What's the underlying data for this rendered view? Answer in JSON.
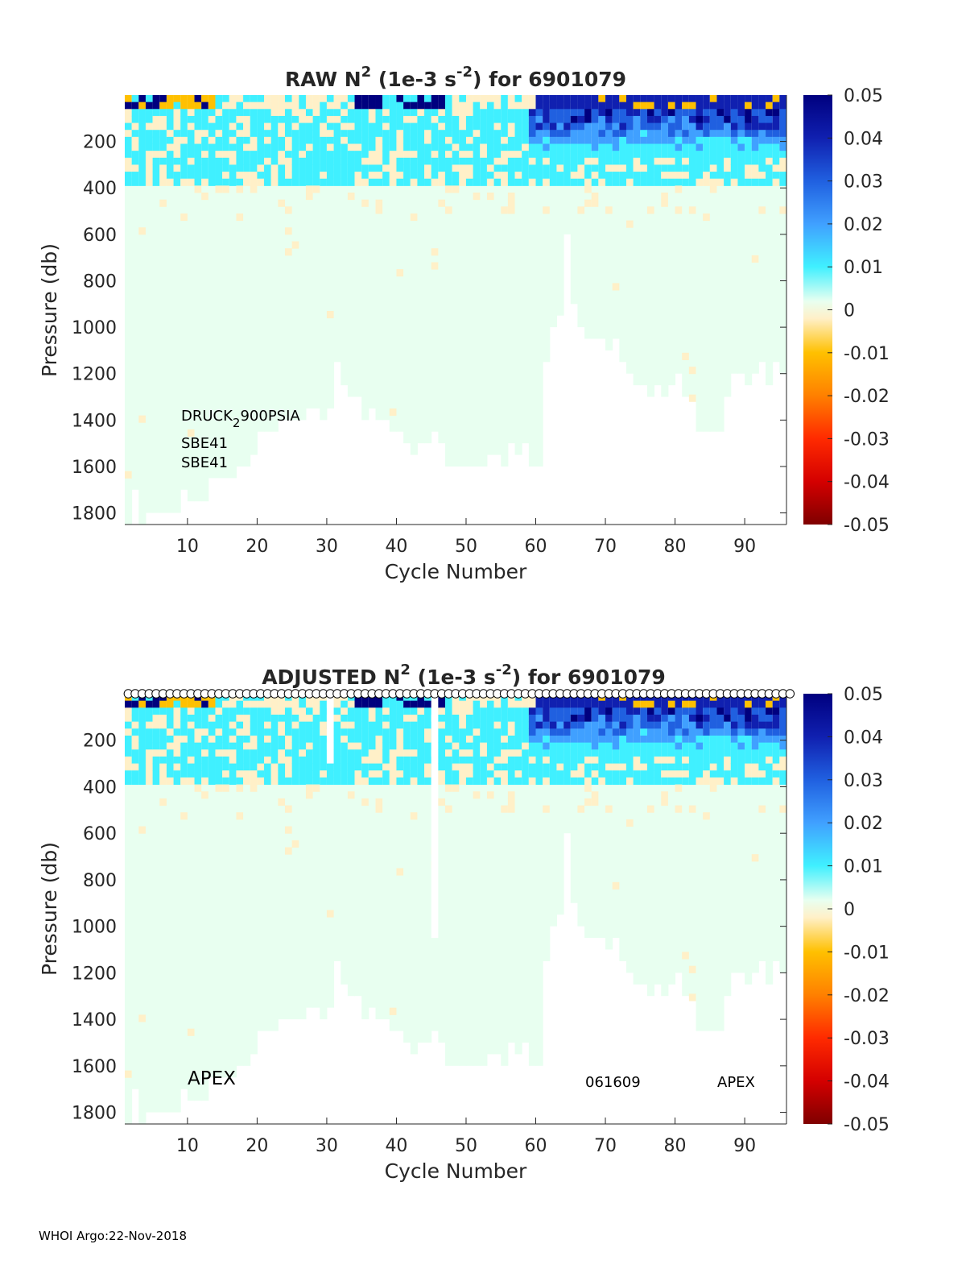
{
  "footer": "WHOI Argo:22-Nov-2018",
  "colorbar": {
    "ticks": [
      "0.05",
      "0.04",
      "0.03",
      "0.02",
      "0.01",
      "0",
      "-0.01",
      "-0.02",
      "-0.03",
      "-0.04",
      "-0.05"
    ],
    "range": [
      -0.05,
      0.05
    ],
    "colors": {
      "n05": "#7f0000",
      "n04": "#d40000",
      "n03": "#ff2a00",
      "n02": "#ff8000",
      "n01": "#ffc000",
      "zero_low": "#fff0c8",
      "zero_high": "#e8fff0",
      "p01": "#40f0ff",
      "p02": "#40a0ff",
      "p03": "#2060e0",
      "p04": "#1020b0",
      "p05": "#00007f"
    }
  },
  "chart_data": [
    {
      "type": "heatmap",
      "title": "RAW N2 (1e-3 s-2) for 6901079",
      "title_parts": {
        "pre": "RAW N",
        "sup1": "2",
        "mid": " (1e-3 s",
        "sup2": "-2",
        "post": ") for 6901079"
      },
      "xlabel": "Cycle Number",
      "ylabel": "Pressure (db)",
      "xlim": [
        1,
        96
      ],
      "ylim": [
        1850,
        0
      ],
      "xticks": [
        "10",
        "20",
        "30",
        "40",
        "50",
        "60",
        "70",
        "80",
        "90"
      ],
      "yticks": [
        "200",
        "400",
        "600",
        "800",
        "1000",
        "1200",
        "1400",
        "1600",
        "1800"
      ],
      "clim": [
        -0.05,
        0.05
      ],
      "background_value": 0.001,
      "max_pressure_by_cycle": [
        1850,
        1700,
        1850,
        1800,
        1800,
        1800,
        1800,
        1800,
        1700,
        1750,
        1750,
        1750,
        1650,
        1650,
        1650,
        1650,
        1600,
        1600,
        1550,
        1450,
        1450,
        1450,
        1400,
        1400,
        1400,
        1400,
        1350,
        1350,
        1400,
        1350,
        1150,
        1250,
        1300,
        1300,
        1400,
        1350,
        1400,
        1400,
        1450,
        1450,
        1500,
        1550,
        1500,
        1500,
        1450,
        1500,
        1600,
        1600,
        1600,
        1600,
        1600,
        1600,
        1550,
        1550,
        1600,
        1500,
        1550,
        1500,
        1600,
        1600,
        1150,
        1000,
        950,
        600,
        900,
        1000,
        1050,
        1050,
        1050,
        1100,
        1050,
        1150,
        1200,
        1250,
        1250,
        1300,
        1250,
        1300,
        1250,
        1200,
        1300,
        1300,
        1450,
        1450,
        1450,
        1450,
        1300,
        1200,
        1200,
        1250,
        1200,
        1150,
        1250,
        1150,
        1200,
        1050
      ],
      "features": {
        "surface_strong_positive": "cycles 60-95, 0-250 db, values ~0.03-0.05",
        "near_surface_negative": "cycles 1-13, 0-60 db, values ~-0.01",
        "deep": "near 0 everywhere below 500 db"
      },
      "annotations": [
        "DRUCK",
        "2",
        "900PSIA",
        "SBE41",
        "SBE41"
      ],
      "qc_markers": false
    },
    {
      "type": "heatmap",
      "title": "ADJUSTED N2 (1e-3 s-2) for 6901079",
      "title_parts": {
        "pre": "ADJUSTED N",
        "sup1": "2",
        "mid": " (1e-3 s",
        "sup2": "-2",
        "post": ") for 6901079"
      },
      "xlabel": "Cycle Number",
      "ylabel": "Pressure (db)",
      "xlim": [
        1,
        96
      ],
      "ylim": [
        1850,
        0
      ],
      "xticks": [
        "10",
        "20",
        "30",
        "40",
        "50",
        "60",
        "70",
        "80",
        "90"
      ],
      "yticks": [
        "200",
        "400",
        "600",
        "800",
        "1000",
        "1200",
        "1400",
        "1600",
        "1800"
      ],
      "clim": [
        -0.05,
        0.05
      ],
      "background_value": 0.001,
      "max_pressure_by_cycle": [
        1850,
        1700,
        1850,
        1800,
        1800,
        1800,
        1800,
        1800,
        1700,
        1750,
        1750,
        1750,
        1650,
        1650,
        1650,
        1650,
        1600,
        1600,
        1550,
        1450,
        1450,
        1450,
        1400,
        1400,
        1400,
        1400,
        1350,
        1350,
        1400,
        1350,
        1150,
        1250,
        1300,
        1300,
        1400,
        1350,
        1400,
        1400,
        1450,
        1450,
        1500,
        1550,
        1500,
        1500,
        1450,
        1500,
        1600,
        1600,
        1600,
        1600,
        1600,
        1600,
        1550,
        1550,
        1600,
        1500,
        1550,
        1500,
        1600,
        1600,
        1150,
        1000,
        950,
        600,
        900,
        1000,
        1050,
        1050,
        1050,
        1100,
        1050,
        1150,
        1200,
        1250,
        1250,
        1300,
        1250,
        1300,
        1250,
        1200,
        1300,
        1300,
        1450,
        1450,
        1450,
        1450,
        1300,
        1200,
        1200,
        1250,
        1200,
        1150,
        1250,
        1150,
        1200,
        1050
      ],
      "gaps": [
        {
          "cycle": 30,
          "pmin": 0,
          "pmax": 300
        },
        {
          "cycle": 45,
          "pmin": 0,
          "pmax": 1050
        }
      ],
      "annotations": [
        "APEX",
        "061609",
        "APEX"
      ],
      "qc_markers": true
    }
  ]
}
